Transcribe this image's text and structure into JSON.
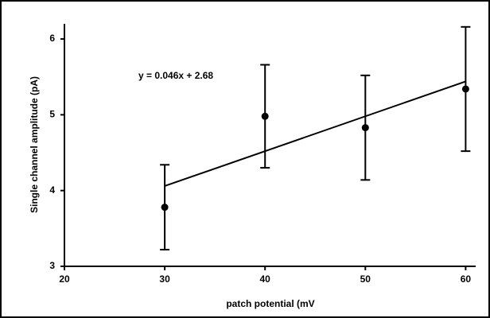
{
  "chart_data": {
    "type": "scatter",
    "x": [
      30,
      40,
      50,
      60
    ],
    "values": [
      3.78,
      4.98,
      4.83,
      5.34
    ],
    "errors": [
      0.56,
      0.68,
      0.69,
      0.82
    ],
    "trendline": {
      "slope": 0.046,
      "intercept": 2.68
    },
    "annotation": "y = 0.046x + 2.68",
    "xlabel": "patch potential (mV",
    "ylabel": "Single channel amplitude (pA)",
    "xlim": [
      20,
      61
    ],
    "xticks": [
      20,
      30,
      40,
      50,
      60
    ],
    "ylim": [
      3,
      6.2
    ],
    "yticks": [
      3,
      4,
      5,
      6
    ],
    "color": "#000000"
  }
}
